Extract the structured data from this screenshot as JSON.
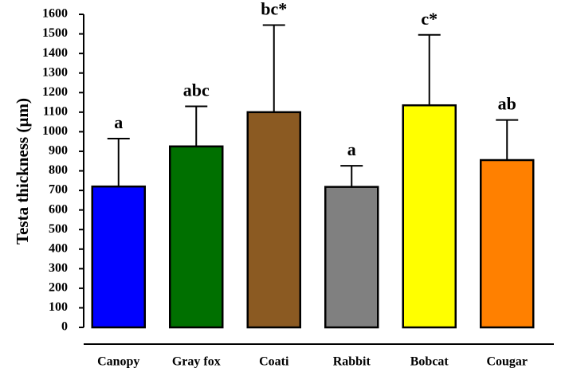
{
  "chart_data": {
    "type": "bar",
    "y_label": "Testa thickness (µm)",
    "categories": [
      "Canopy",
      "Gray fox",
      "Coati",
      "Rabbit",
      "Bobcat",
      "Cougar"
    ],
    "values": [
      720,
      925,
      1100,
      718,
      1135,
      855
    ],
    "errors": [
      245,
      205,
      445,
      108,
      360,
      205
    ],
    "annotations": [
      "a",
      "abc",
      "bc*",
      "a",
      "c*",
      "ab"
    ],
    "colors": [
      "#0000ff",
      "#007000",
      "#8b5a22",
      "#808080",
      "#ffff00",
      "#ff8000"
    ],
    "ylim": [
      0,
      1600
    ],
    "yticks": [
      0,
      100,
      200,
      300,
      400,
      500,
      600,
      700,
      800,
      900,
      1000,
      1100,
      1200,
      1300,
      1400,
      1500,
      1600
    ]
  }
}
